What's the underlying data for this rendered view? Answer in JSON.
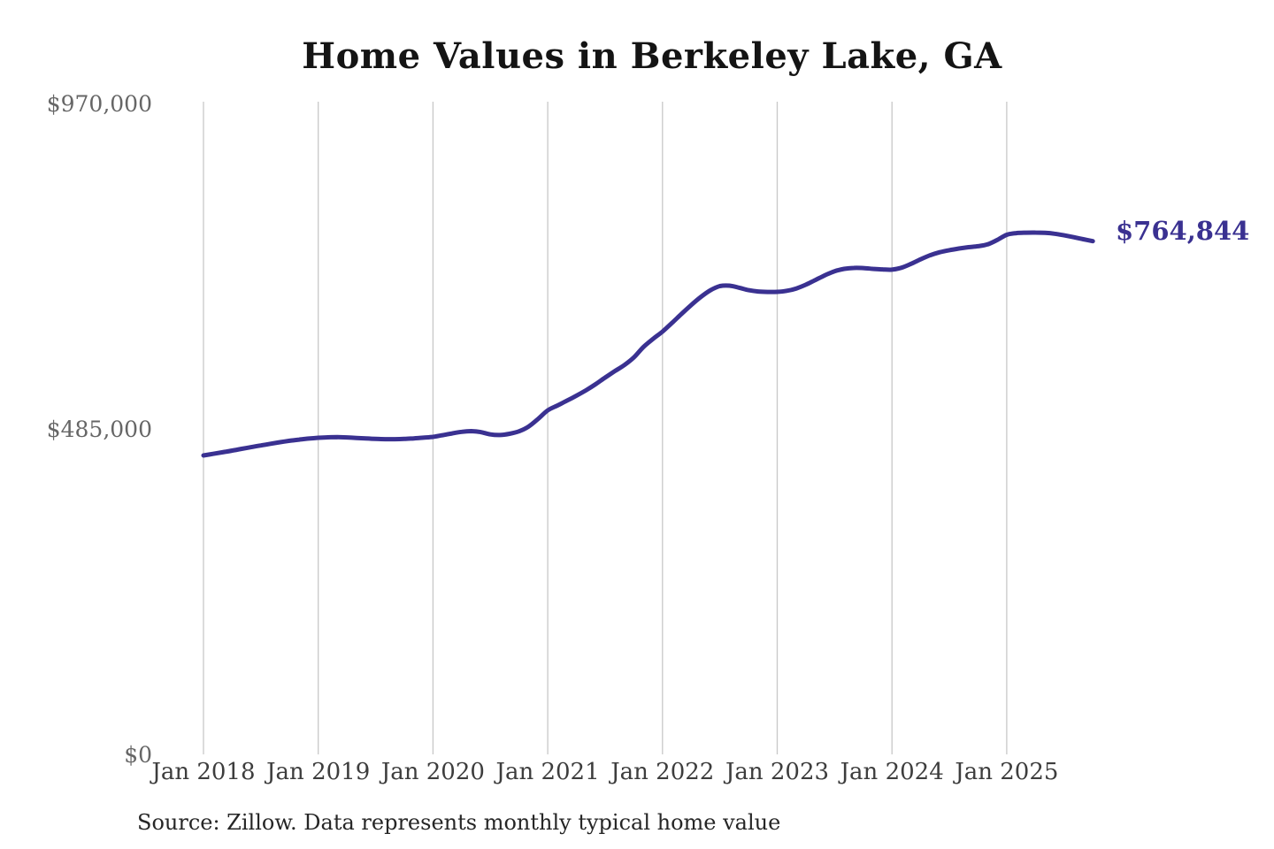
{
  "title": "Home Values in Berkeley Lake, GA",
  "source_note": "Source: Zillow. Data represents monthly typical home value",
  "end_label": "$764,844",
  "colors": {
    "line": "#3a3191",
    "grid": "#c8c8c8",
    "title": "#141414",
    "y_label": "#666666",
    "x_label": "#3d3d3d",
    "end_label": "#3a3191",
    "source": "#262626",
    "background": "#ffffff"
  },
  "y_axis": {
    "ticks": [
      {
        "label": "$970,000",
        "value": 970000
      },
      {
        "label": "$485,000",
        "value": 485000
      },
      {
        "label": "$0",
        "value": 0
      }
    ]
  },
  "x_axis": {
    "ticks": [
      {
        "label": "Jan 2018",
        "month_index": 0
      },
      {
        "label": "Jan 2019",
        "month_index": 12
      },
      {
        "label": "Jan 2020",
        "month_index": 24
      },
      {
        "label": "Jan 2021",
        "month_index": 36
      },
      {
        "label": "Jan 2022",
        "month_index": 48
      },
      {
        "label": "Jan 2023",
        "month_index": 60
      },
      {
        "label": "Jan 2024",
        "month_index": 72
      },
      {
        "label": "Jan 2025",
        "month_index": 84
      }
    ]
  },
  "chart_data": {
    "type": "line",
    "title": "Home Values in Berkeley Lake, GA",
    "xlabel": "",
    "ylabel": "",
    "ylim": [
      0,
      970000
    ],
    "y_tick_labels": [
      "$0",
      "$485,000",
      "$970,000"
    ],
    "grid": "vertical",
    "legend": "none",
    "x_unit": "month",
    "x_start": "2018-01",
    "x_end": "2025-10",
    "final_value": 764844,
    "final_value_label": "$764,844",
    "series": [
      {
        "name": "Typical home value (USD)",
        "values_by_year": {
          "2018": [
            445500,
            447800,
            450200,
            452700,
            455300,
            457900,
            460400,
            462900,
            465200,
            467300,
            469100,
            470600
          ],
          "2019": [
            471800,
            472500,
            472700,
            472300,
            471600,
            470800,
            470100,
            469700,
            469700,
            470100,
            470900,
            471900
          ],
          "2020": [
            473200,
            475600,
            478300,
            480700,
            481700,
            480300,
            476800,
            475900,
            477800,
            481500,
            488500,
            500000
          ],
          "2021": [
            512700,
            519800,
            527000,
            534500,
            542500,
            551500,
            561500,
            571000,
            580000,
            591500,
            607000,
            619000
          ],
          "2022": [
            630000,
            643000,
            656500,
            669500,
            681500,
            691500,
            697800,
            698500,
            695500,
            691800,
            689800,
            689200
          ],
          "2023": [
            689300,
            690800,
            694300,
            700000,
            707000,
            714000,
            720000,
            723500,
            724900,
            724700,
            723600,
            722700
          ],
          "2024": [
            722300,
            725300,
            731000,
            737800,
            743800,
            748300,
            751300,
            753800,
            755800,
            757300,
            760000,
            766500
          ],
          "2025": [
            774300,
            776800,
            777500,
            777600,
            777200,
            775900,
            773500,
            770700,
            767700,
            764844
          ]
        }
      }
    ]
  }
}
